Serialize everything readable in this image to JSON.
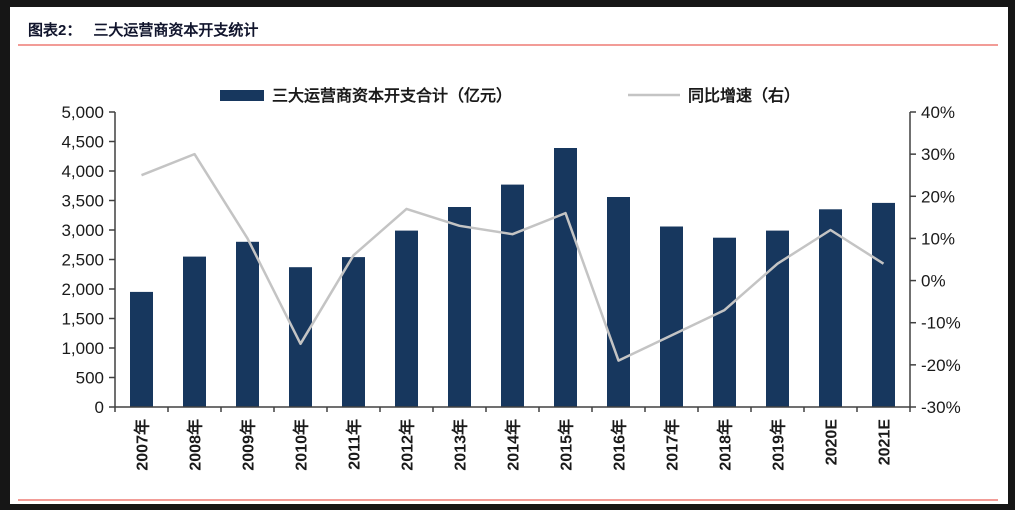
{
  "header": {
    "label": "图表2：",
    "title": "三大运营商资本开支统计"
  },
  "colors": {
    "bar": "#17375e",
    "line": "#c4c4c4",
    "accent_line": "#f29c97",
    "frame": "#161616",
    "axis": "#404040",
    "panel": "#ffffff"
  },
  "chart_data": {
    "type": "bar+line combo",
    "categories": [
      "2007年",
      "2008年",
      "2009年",
      "2010年",
      "2011年",
      "2012年",
      "2013年",
      "2014年",
      "2015年",
      "2016年",
      "2017年",
      "2018年",
      "2019年",
      "2020E",
      "2021E"
    ],
    "series": [
      {
        "name": "三大运营商资本开支合计（亿元）",
        "type": "bar",
        "axis": "left",
        "color": "#17375e",
        "values": [
          1950,
          2550,
          2800,
          2370,
          2540,
          2990,
          3390,
          3770,
          4390,
          3560,
          3060,
          2870,
          2990,
          3350,
          3460
        ]
      },
      {
        "name": "同比增速（右）",
        "type": "line",
        "axis": "right",
        "color": "#c4c4c4",
        "values": [
          25,
          30,
          10,
          -15,
          6,
          17,
          13,
          11,
          16,
          -19,
          -13,
          -7,
          4,
          12,
          4
        ]
      }
    ],
    "left_axis": {
      "min": 0,
      "max": 5000,
      "step": 500,
      "labels": [
        "0",
        "500",
        "1,000",
        "1,500",
        "2,000",
        "2,500",
        "3,000",
        "3,500",
        "4,000",
        "4,500",
        "5,000"
      ]
    },
    "right_axis": {
      "min": -30,
      "max": 40,
      "step": 10,
      "labels": [
        "-30%",
        "-20%",
        "-10%",
        "0%",
        "10%",
        "20%",
        "30%",
        "40%"
      ]
    },
    "legend_position": "top",
    "grid": false
  }
}
